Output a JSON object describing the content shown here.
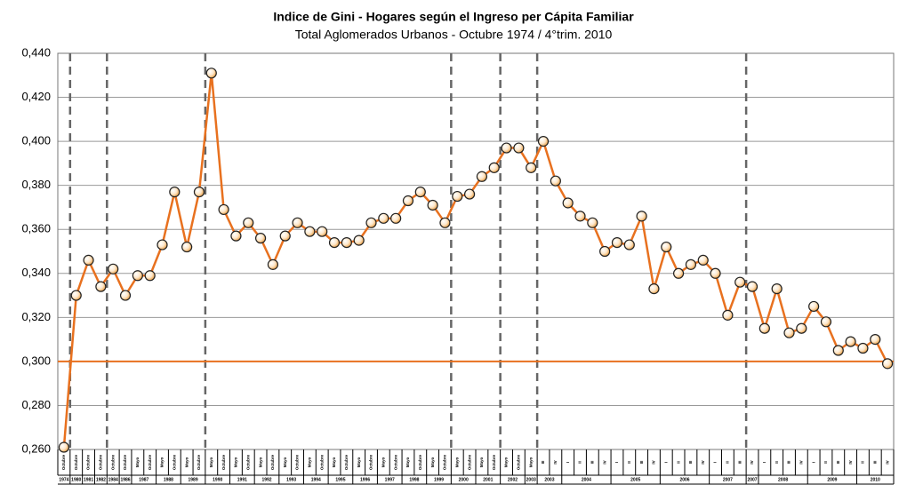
{
  "chart_data": {
    "type": "line",
    "title": "Indice de Gini - Hogares según el Ingreso per Cápita Familiar",
    "subtitle": "Total Aglomerados Urbanos - Octubre 1974 / 4°trim. 2010",
    "categories": [
      "Octubre",
      "Octubre",
      "Octubre",
      "Octubre",
      "Octubre",
      "Octubre",
      "Mayo",
      "Octubre",
      "Mayo",
      "Octubre",
      "Mayo",
      "Octubre",
      "Mayo",
      "Octubre",
      "Mayo",
      "Octubre",
      "Mayo",
      "Octubre",
      "Mayo",
      "Octubre",
      "Mayo",
      "Octubre",
      "Mayo",
      "Octubre",
      "Mayo",
      "Octubre",
      "Mayo",
      "Octubre",
      "Mayo",
      "Octubre",
      "Mayo",
      "Octubre",
      "Mayo",
      "Octubre",
      "Mayo",
      "Octubre",
      "Mayo",
      "Octubre",
      "Mayo",
      "III",
      "IV",
      "I",
      "II",
      "III",
      "IV",
      "I",
      "II",
      "III",
      "IV",
      "I",
      "II",
      "III",
      "IV",
      "I",
      "II",
      "III",
      "IV",
      "I",
      "II",
      "III",
      "IV",
      "I",
      "II",
      "III",
      "IV",
      "II",
      "III",
      "IV"
    ],
    "years": [
      "1974",
      "1980",
      "1981",
      "1982",
      "1984",
      "1986",
      "1987",
      "1987",
      "1988",
      "1988",
      "1989",
      "1989",
      "1990",
      "1990",
      "1991",
      "1991",
      "1992",
      "1992",
      "1993",
      "1993",
      "1994",
      "1994",
      "1995",
      "1995",
      "1996",
      "1996",
      "1997",
      "1997",
      "1998",
      "1998",
      "1999",
      "1999",
      "2000",
      "2000",
      "2001",
      "2001",
      "2002",
      "2002",
      "2003",
      "2003",
      "2003",
      "2004",
      "2004",
      "2004",
      "2004",
      "2005",
      "2005",
      "2005",
      "2005",
      "2006",
      "2006",
      "2006",
      "2006",
      "2007",
      "2007",
      "2007",
      "2007",
      "2008",
      "2008",
      "2008",
      "2008",
      "2009",
      "2009",
      "2009",
      "2009",
      "2010",
      "2010",
      "2010"
    ],
    "series": [
      {
        "name": "Indice de Gini",
        "color": "#e8711f",
        "values": [
          0.261,
          0.33,
          0.346,
          0.334,
          0.342,
          0.33,
          0.339,
          0.339,
          0.353,
          0.377,
          0.352,
          0.377,
          0.431,
          0.369,
          0.357,
          0.363,
          0.356,
          0.344,
          0.357,
          0.363,
          0.359,
          0.359,
          0.354,
          0.354,
          0.355,
          0.363,
          0.365,
          0.365,
          0.373,
          0.377,
          0.371,
          0.363,
          0.375,
          0.376,
          0.384,
          0.388,
          0.397,
          0.397,
          0.388,
          0.4,
          0.382,
          0.372,
          0.366,
          0.363,
          0.35,
          0.354,
          0.353,
          0.366,
          0.333,
          0.352,
          0.34,
          0.344,
          0.346,
          0.34,
          0.321,
          0.336,
          0.334,
          0.315,
          0.333,
          0.313,
          0.315,
          0.325,
          0.318,
          0.305,
          0.309,
          0.306,
          0.31,
          0.299
        ]
      }
    ],
    "reference_line": 0.3,
    "ylim": [
      0.26,
      0.44
    ],
    "yticks": [
      {
        "value": 0.26,
        "label": "0,260"
      },
      {
        "value": 0.28,
        "label": "0,280"
      },
      {
        "value": 0.3,
        "label": "0,300"
      },
      {
        "value": 0.32,
        "label": "0,320"
      },
      {
        "value": 0.34,
        "label": "0,340"
      },
      {
        "value": 0.36,
        "label": "0,360"
      },
      {
        "value": 0.38,
        "label": "0,380"
      },
      {
        "value": 0.4,
        "label": "0,400"
      },
      {
        "value": 0.42,
        "label": "0,420"
      },
      {
        "value": 0.44,
        "label": "0,440"
      }
    ],
    "grid": true
  }
}
